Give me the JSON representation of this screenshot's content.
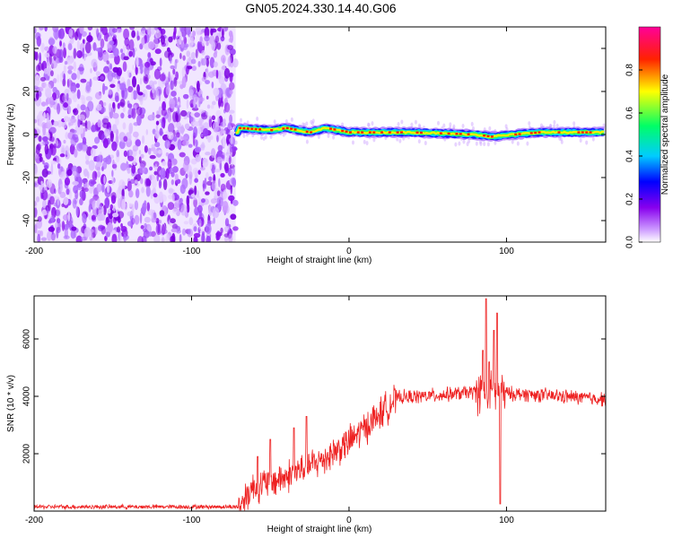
{
  "title": "GN05.2024.330.14.40.G06",
  "colors": {
    "snr_line": "#ee2222",
    "colormap": [
      "#ffffff",
      "#cc99ff",
      "#8800ee",
      "#0000ff",
      "#00ccff",
      "#00ff66",
      "#ffff00",
      "#ff2200",
      "#ff0099"
    ]
  },
  "chart_data": [
    {
      "type": "heatmap",
      "name": "spectrogram",
      "xlabel": "Height of straight line (km)",
      "ylabel": "Frequency (Hz)",
      "xlim": [
        -200,
        163
      ],
      "ylim": [
        -50,
        50
      ],
      "xticks": [
        -200,
        -100,
        0,
        100
      ],
      "yticks": [
        -40,
        -20,
        0,
        20,
        40
      ],
      "colorbar": {
        "label": "Normalized spectral amplitude",
        "range": [
          0,
          1
        ],
        "ticks": [
          "0.0",
          "0.2",
          "0.4",
          "0.6",
          "0.8"
        ]
      },
      "features": {
        "noise_region_x": [
          -200,
          -72
        ],
        "signal_start_x": -72,
        "signal_line_freq_hz": [
          {
            "x": -70,
            "f": 3
          },
          {
            "x": -50,
            "f": 2
          },
          {
            "x": -40,
            "f": 3
          },
          {
            "x": -25,
            "f": 1
          },
          {
            "x": -15,
            "f": 3
          },
          {
            "x": 0,
            "f": 1
          },
          {
            "x": 40,
            "f": 1
          },
          {
            "x": 80,
            "f": 0
          },
          {
            "x": 90,
            "f": -1
          },
          {
            "x": 120,
            "f": 1
          },
          {
            "x": 163,
            "f": 1
          }
        ]
      }
    },
    {
      "type": "line",
      "name": "snr",
      "xlabel": "Height of straight line (km)",
      "ylabel": "SNR (10 * v/v)",
      "xlim": [
        -200,
        163
      ],
      "ylim": [
        0,
        7500
      ],
      "xticks": [
        -200,
        -100,
        0,
        100
      ],
      "yticks": [
        2000,
        4000,
        6000
      ],
      "trend": [
        {
          "x": -200,
          "y": 150
        },
        {
          "x": -70,
          "y": 150
        },
        {
          "x": -62,
          "y": 800
        },
        {
          "x": -40,
          "y": 1200
        },
        {
          "x": -20,
          "y": 1700
        },
        {
          "x": 0,
          "y": 2400
        },
        {
          "x": 20,
          "y": 3400
        },
        {
          "x": 30,
          "y": 3950
        },
        {
          "x": 60,
          "y": 4050
        },
        {
          "x": 80,
          "y": 4150
        },
        {
          "x": 100,
          "y": 4100
        },
        {
          "x": 120,
          "y": 4050
        },
        {
          "x": 163,
          "y": 3900
        }
      ],
      "spikes": [
        {
          "x": -58,
          "y": 1900
        },
        {
          "x": -50,
          "y": 2500
        },
        {
          "x": -35,
          "y": 2900
        },
        {
          "x": -27,
          "y": 3300
        },
        {
          "x": 85,
          "y": 5600
        },
        {
          "x": 87,
          "y": 7400
        },
        {
          "x": 89,
          "y": 5200
        },
        {
          "x": 92,
          "y": 6300
        },
        {
          "x": 94,
          "y": 6900
        },
        {
          "x": 96,
          "y": 250
        }
      ]
    }
  ]
}
